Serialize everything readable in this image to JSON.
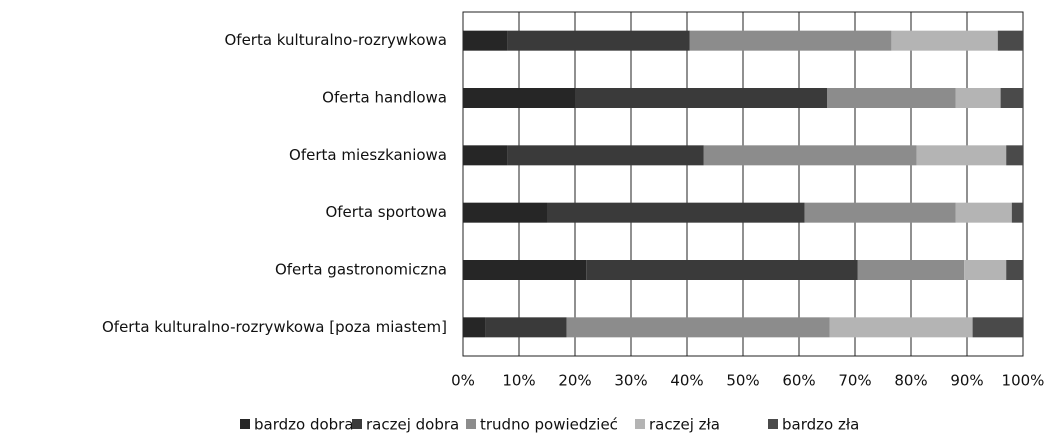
{
  "chart_data": {
    "type": "stacked-bar-horizontal",
    "categories": [
      "Oferta kulturalno-rozrywkowa",
      "Oferta handlowa",
      "Oferta mieszkaniowa",
      "Oferta sportowa",
      "Oferta gastronomiczna",
      "Oferta kulturalno-rozrywkowa [poza miastem]"
    ],
    "series": [
      {
        "name": "bardzo dobra",
        "color": "#262626",
        "values": [
          8,
          20,
          8,
          15,
          22,
          4
        ]
      },
      {
        "name": "raczej dobra",
        "color": "#3a3a3a",
        "values": [
          32.5,
          45,
          35,
          46,
          48.5,
          14.5
        ]
      },
      {
        "name": "trudno powiedzieć",
        "color": "#8c8c8c",
        "values": [
          36,
          23,
          38,
          27,
          19,
          47
        ]
      },
      {
        "name": "raczej zła",
        "color": "#b4b4b4",
        "values": [
          19,
          8,
          16,
          10,
          7.5,
          25.5
        ]
      },
      {
        "name": "bardzo zła",
        "color": "#4a4a4a",
        "values": [
          4.5,
          4,
          3,
          2,
          3,
          9
        ]
      }
    ],
    "xlim": [
      0,
      100
    ],
    "xticks": [
      {
        "value": 0,
        "label": "0%"
      },
      {
        "value": 10,
        "label": "10%"
      },
      {
        "value": 20,
        "label": "20%"
      },
      {
        "value": 30,
        "label": "30%"
      },
      {
        "value": 40,
        "label": "40%"
      },
      {
        "value": 50,
        "label": "50%"
      },
      {
        "value": 60,
        "label": "60%"
      },
      {
        "value": 70,
        "label": "70%"
      },
      {
        "value": 80,
        "label": "80%"
      },
      {
        "value": 90,
        "label": "90%"
      },
      {
        "value": 100,
        "label": "100%"
      }
    ],
    "grid": true,
    "legend": "bottom"
  }
}
